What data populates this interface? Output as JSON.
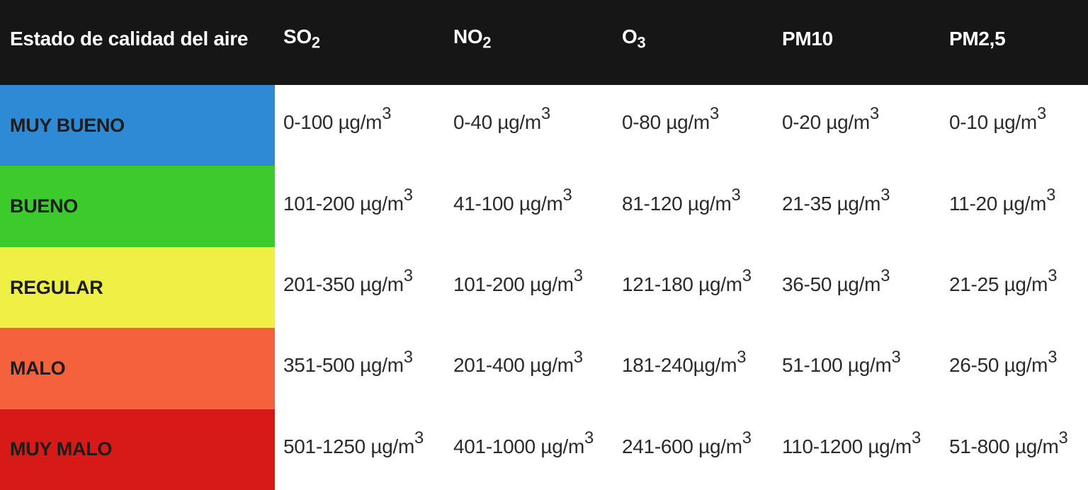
{
  "chart_data": {
    "type": "table",
    "title": "Estado de calidad del aire",
    "unit": "µg/m³",
    "columns": [
      {
        "id": "estado",
        "base": "Estado de calidad del aire",
        "sub": ""
      },
      {
        "id": "so2",
        "base": "SO",
        "sub": "2"
      },
      {
        "id": "no2",
        "base": "NO",
        "sub": "2"
      },
      {
        "id": "o3",
        "base": "O",
        "sub": "3"
      },
      {
        "id": "pm10",
        "base": "PM10",
        "sub": ""
      },
      {
        "id": "pm25",
        "base": "PM2,5",
        "sub": ""
      }
    ],
    "rows": [
      {
        "label": "MUY BUENO",
        "color": "#2f8ad6",
        "values": [
          {
            "text": "0-100 µg/m",
            "exp": "3"
          },
          {
            "text": "0-40 µg/m",
            "exp": "3"
          },
          {
            "text": "0-80 µg/m",
            "exp": "3"
          },
          {
            "text": "0-20 µg/m",
            "exp": "3"
          },
          {
            "text": "0-10 µg/m",
            "exp": "3"
          }
        ]
      },
      {
        "label": "BUENO",
        "color": "#3bcb2d",
        "values": [
          {
            "text": "101-200 µg/m",
            "exp": "3"
          },
          {
            "text": "41-100 µg/m",
            "exp": "3"
          },
          {
            "text": "81-120 µg/m",
            "exp": "3"
          },
          {
            "text": "21-35 µg/m",
            "exp": "3"
          },
          {
            "text": "11-20 µg/m",
            "exp": "3"
          }
        ]
      },
      {
        "label": "REGULAR",
        "color": "#eef045",
        "values": [
          {
            "text": "201-350 µg/m",
            "exp": "3"
          },
          {
            "text": "101-200 µg/m",
            "exp": "3"
          },
          {
            "text": "121-180 µg/m",
            "exp": "3"
          },
          {
            "text": "36-50 µg/m",
            "exp": "3"
          },
          {
            "text": "21-25 µg/m",
            "exp": "3"
          }
        ]
      },
      {
        "label": "MALO",
        "color": "#f3613d",
        "values": [
          {
            "text": "351-500 µg/m",
            "exp": "3"
          },
          {
            "text": "201-400 µg/m",
            "exp": "3"
          },
          {
            "text": "181-240µg/m",
            "exp": "3"
          },
          {
            "text": "51-100 µg/m",
            "exp": "3"
          },
          {
            "text": "26-50 µg/m",
            "exp": "3"
          }
        ]
      },
      {
        "label": "MUY MALO",
        "color": "#d51a18",
        "values": [
          {
            "text": "501-1250 µg/m",
            "exp": "3"
          },
          {
            "text": "401-1000 µg/m",
            "exp": "3"
          },
          {
            "text": "241-600 µg/m",
            "exp": "3"
          },
          {
            "text": "110-1200 µg/m",
            "exp": "3"
          },
          {
            "text": "51-800 µg/m",
            "exp": "3"
          }
        ]
      }
    ]
  },
  "colors": {
    "header_bg": "#161616",
    "header_text": "#ffffff",
    "row_label_text": "#1c1c1c",
    "value_text": "#2b2b2b",
    "body_bg": "#ffffff"
  }
}
